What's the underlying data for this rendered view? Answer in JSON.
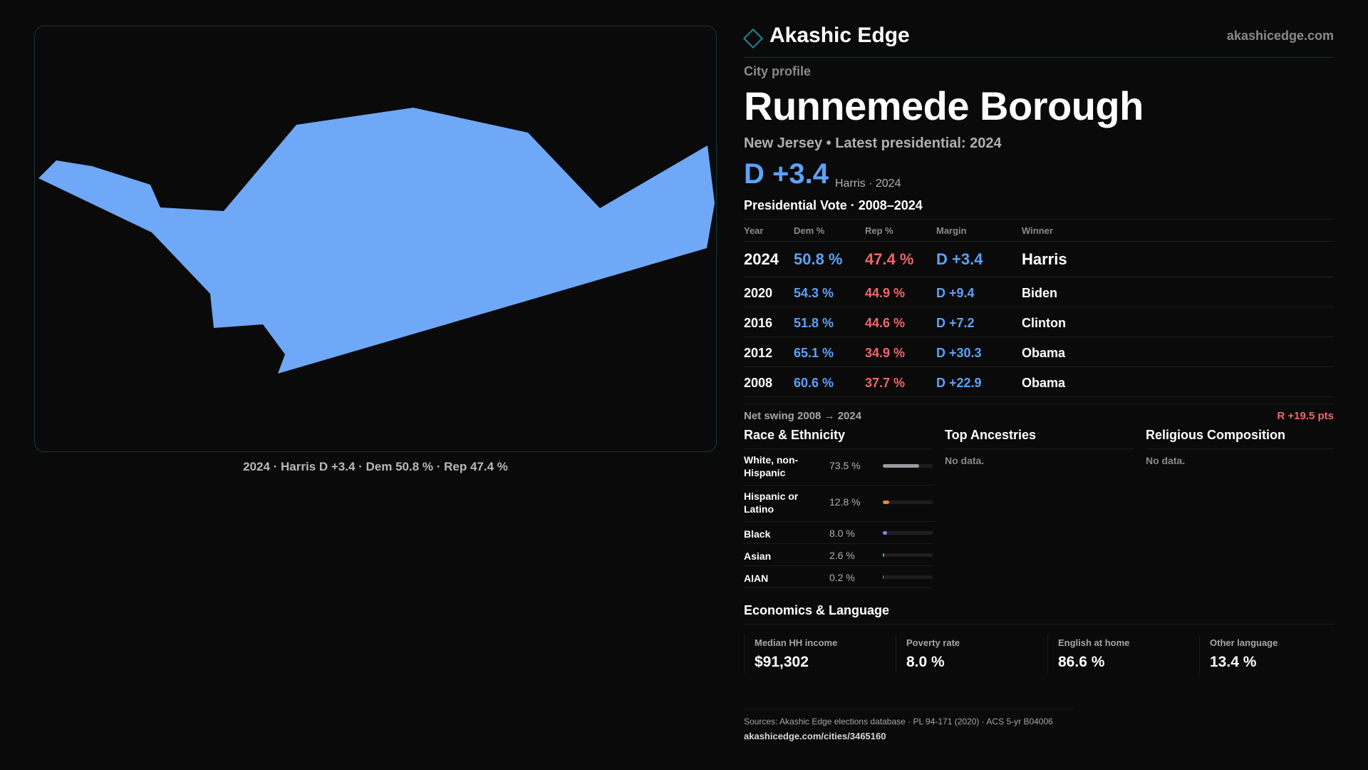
{
  "map": {
    "caption": "2024 · Harris D +3.4 · Dem 50.8 % · Rep 47.4 %",
    "fill_color": "#6fa8f7"
  },
  "header": {
    "brand": "Akashic Edge",
    "site": "akashicedge.com",
    "eyebrow": "City profile",
    "title": "Runnemede Borough",
    "subtitle": "New Jersey • Latest presidential: 2024",
    "big_margin": "D +3.4",
    "big_winner": "Harris · 2024"
  },
  "vote": {
    "title": "Presidential Vote · 2008–2024",
    "headers": {
      "year": "Year",
      "dem": "Dem %",
      "rep": "Rep %",
      "margin": "Margin",
      "winner": "Winner"
    },
    "rows": [
      {
        "year": "2024",
        "dem": "50.8 %",
        "rep": "47.4 %",
        "margin": "D +3.4",
        "winner": "Harris"
      },
      {
        "year": "2020",
        "dem": "54.3 %",
        "rep": "44.9 %",
        "margin": "D +9.4",
        "winner": "Biden"
      },
      {
        "year": "2016",
        "dem": "51.8 %",
        "rep": "44.6 %",
        "margin": "D +7.2",
        "winner": "Clinton"
      },
      {
        "year": "2012",
        "dem": "65.1 %",
        "rep": "34.9 %",
        "margin": "D +30.3",
        "winner": "Obama"
      },
      {
        "year": "2008",
        "dem": "60.6 %",
        "rep": "37.7 %",
        "margin": "D +22.9",
        "winner": "Obama"
      }
    ],
    "swing_label": "Net swing 2008 → 2024",
    "swing_value": "R +19.5 pts"
  },
  "race": {
    "title": "Race & Ethnicity",
    "rows": [
      {
        "label": "White, non-Hispanic",
        "pct": "73.5 %",
        "value": 73.5,
        "color": "#9a9aa0"
      },
      {
        "label": "Hispanic or Latino",
        "pct": "12.8 %",
        "value": 12.8,
        "color": "#e08a2c"
      },
      {
        "label": "Black",
        "pct": "8.0 %",
        "value": 8.0,
        "color": "#9b7be8"
      },
      {
        "label": "Asian",
        "pct": "2.6 %",
        "value": 2.6,
        "color": "#2fbf8f"
      },
      {
        "label": "AIAN",
        "pct": "0.2 %",
        "value": 0.2,
        "color": "#d96060"
      }
    ]
  },
  "ancestries": {
    "title": "Top Ancestries",
    "empty": "No data."
  },
  "religion": {
    "title": "Religious Composition",
    "empty": "No data."
  },
  "economics": {
    "title": "Economics & Language",
    "stats": [
      {
        "label": "Median HH income",
        "value": "$91,302"
      },
      {
        "label": "Poverty rate",
        "value": "8.0 %"
      },
      {
        "label": "English at home",
        "value": "86.6 %"
      },
      {
        "label": "Other language",
        "value": "13.4 %"
      }
    ]
  },
  "footer": {
    "sources": "Sources: Akashic Edge elections database · PL 94-171 (2020) · ACS 5-yr B04006",
    "url": "akashicedge.com/cities/3465160"
  }
}
